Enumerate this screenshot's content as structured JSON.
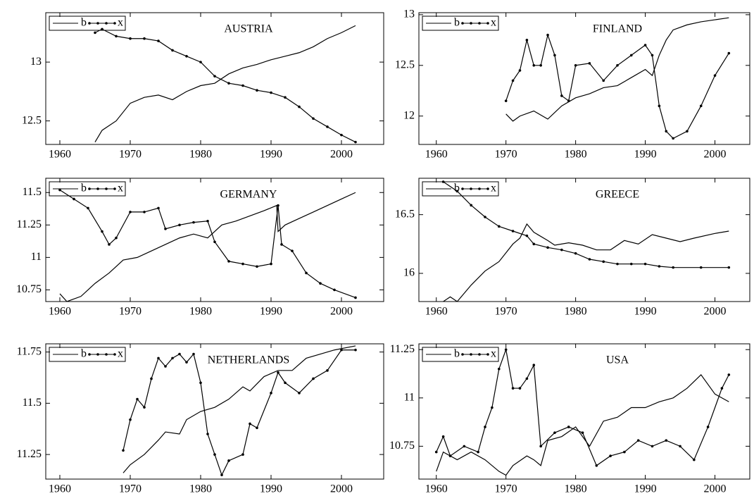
{
  "chart_data": [
    {
      "type": "line",
      "title": "AUSTRIA",
      "legend": "upper left",
      "xlim": [
        1958,
        2006
      ],
      "xticks": [
        1960,
        1970,
        1980,
        1990,
        2000
      ],
      "ylim": [
        12.3,
        13.42
      ],
      "yticks": [
        12.5,
        13
      ],
      "series": [
        {
          "name": "b",
          "color": "#000000",
          "marker": "none",
          "x": [
            1965,
            1966,
            1968,
            1970,
            1972,
            1974,
            1976,
            1978,
            1980,
            1982,
            1984,
            1986,
            1988,
            1990,
            1992,
            1994,
            1996,
            1998,
            2000,
            2002
          ],
          "values": [
            12.32,
            12.42,
            12.5,
            12.65,
            12.7,
            12.72,
            12.68,
            12.75,
            12.8,
            12.82,
            12.9,
            12.95,
            12.98,
            13.02,
            13.05,
            13.08,
            13.13,
            13.2,
            13.25,
            13.31
          ]
        },
        {
          "name": "x",
          "color": "#000000",
          "marker": "circle",
          "x": [
            1965,
            1966,
            1968,
            1970,
            1972,
            1974,
            1976,
            1978,
            1980,
            1982,
            1984,
            1986,
            1988,
            1990,
            1992,
            1994,
            1996,
            1998,
            2000,
            2002
          ],
          "values": [
            13.25,
            13.28,
            13.22,
            13.2,
            13.2,
            13.18,
            13.1,
            13.05,
            13.0,
            12.88,
            12.82,
            12.8,
            12.76,
            12.74,
            12.7,
            12.62,
            12.52,
            12.45,
            12.38,
            12.32
          ]
        }
      ]
    },
    {
      "type": "line",
      "title": "FINLAND",
      "legend": "upper left",
      "xlim": [
        1957.5,
        2005
      ],
      "xticks": [
        1960,
        1970,
        1980,
        1990,
        2000
      ],
      "ylim": [
        11.72,
        13.02
      ],
      "yticks": [
        12,
        12.5,
        13
      ],
      "series": [
        {
          "name": "b",
          "color": "#000000",
          "marker": "none",
          "x": [
            1970,
            1971,
            1972,
            1974,
            1976,
            1978,
            1980,
            1982,
            1984,
            1986,
            1988,
            1990,
            1991,
            1992,
            1993,
            1994,
            1996,
            1998,
            2000,
            2002
          ],
          "values": [
            12.02,
            11.95,
            12.0,
            12.05,
            11.97,
            12.1,
            12.18,
            12.22,
            12.28,
            12.3,
            12.38,
            12.46,
            12.4,
            12.6,
            12.75,
            12.85,
            12.9,
            12.93,
            12.95,
            12.97
          ]
        },
        {
          "name": "x",
          "color": "#000000",
          "marker": "circle",
          "x": [
            1970,
            1971,
            1972,
            1973,
            1974,
            1975,
            1976,
            1977,
            1978,
            1979,
            1980,
            1982,
            1984,
            1986,
            1988,
            1990,
            1991,
            1992,
            1993,
            1994,
            1996,
            1998,
            2000,
            2002
          ],
          "values": [
            12.15,
            12.35,
            12.45,
            12.75,
            12.5,
            12.5,
            12.8,
            12.6,
            12.2,
            12.15,
            12.5,
            12.52,
            12.35,
            12.5,
            12.6,
            12.7,
            12.6,
            12.1,
            11.85,
            11.78,
            11.85,
            12.1,
            12.4,
            12.62
          ]
        }
      ]
    },
    {
      "type": "line",
      "title": "GERMANY",
      "legend": "upper left",
      "xlim": [
        1958,
        2006
      ],
      "xticks": [
        1960,
        1970,
        1980,
        1990,
        2000
      ],
      "ylim": [
        10.66,
        11.61
      ],
      "yticks": [
        10.75,
        11,
        11.25,
        11.5
      ],
      "series": [
        {
          "name": "b",
          "color": "#000000",
          "marker": "none",
          "x": [
            1960,
            1961,
            1963,
            1965,
            1967,
            1969,
            1971,
            1973,
            1975,
            1977,
            1979,
            1981,
            1983,
            1985,
            1987,
            1989,
            1990.8,
            1991,
            1992,
            1994,
            1996,
            1998,
            2000,
            2002
          ],
          "values": [
            10.72,
            10.66,
            10.7,
            10.8,
            10.88,
            10.98,
            11.0,
            11.05,
            11.1,
            11.15,
            11.18,
            11.15,
            11.25,
            11.28,
            11.32,
            11.36,
            11.4,
            11.2,
            11.25,
            11.3,
            11.35,
            11.4,
            11.45,
            11.5
          ]
        },
        {
          "name": "x",
          "color": "#000000",
          "marker": "circle",
          "x": [
            1960,
            1962,
            1964,
            1966,
            1967,
            1968,
            1970,
            1972,
            1974,
            1975,
            1977,
            1979,
            1981,
            1982,
            1984,
            1986,
            1988,
            1990,
            1991,
            1991.5,
            1993,
            1995,
            1997,
            1999,
            2002
          ],
          "values": [
            11.52,
            11.45,
            11.38,
            11.2,
            11.1,
            11.15,
            11.35,
            11.35,
            11.38,
            11.22,
            11.25,
            11.27,
            11.28,
            11.12,
            10.97,
            10.95,
            10.93,
            10.95,
            11.4,
            11.1,
            11.05,
            10.88,
            10.8,
            10.75,
            10.69
          ]
        }
      ]
    },
    {
      "type": "line",
      "title": "GREECE",
      "legend": "upper left",
      "xlim": [
        1957.5,
        2005
      ],
      "xticks": [
        1960,
        1970,
        1980,
        1990,
        2000
      ],
      "ylim": [
        15.76,
        16.81
      ],
      "yticks": [
        16,
        16.5
      ],
      "series": [
        {
          "name": "b",
          "color": "#000000",
          "marker": "none",
          "x": [
            1961,
            1962,
            1963,
            1965,
            1967,
            1969,
            1971,
            1972,
            1973,
            1974,
            1976,
            1977,
            1979,
            1981,
            1983,
            1985,
            1987,
            1989,
            1991,
            1993,
            1995,
            1997,
            2000,
            2002
          ],
          "values": [
            15.76,
            15.8,
            15.76,
            15.9,
            16.02,
            16.1,
            16.25,
            16.3,
            16.42,
            16.35,
            16.28,
            16.24,
            16.26,
            16.24,
            16.2,
            16.2,
            16.28,
            16.25,
            16.33,
            16.3,
            16.27,
            16.3,
            16.34,
            16.36
          ]
        },
        {
          "name": "x",
          "color": "#000000",
          "marker": "circle",
          "x": [
            1961,
            1963,
            1965,
            1967,
            1969,
            1971,
            1973,
            1974,
            1976,
            1978,
            1980,
            1982,
            1984,
            1986,
            1988,
            1990,
            1992,
            1994,
            1998,
            2002
          ],
          "values": [
            16.78,
            16.7,
            16.58,
            16.48,
            16.4,
            16.36,
            16.32,
            16.25,
            16.22,
            16.2,
            16.17,
            16.12,
            16.1,
            16.08,
            16.08,
            16.08,
            16.06,
            16.05,
            16.05,
            16.05
          ]
        }
      ]
    },
    {
      "type": "line",
      "title": "NETHERLANDS",
      "legend": "upper left",
      "xlim": [
        1958,
        2006
      ],
      "xticks": [
        1960,
        1970,
        1980,
        1990,
        2000
      ],
      "ylim": [
        11.13,
        11.79
      ],
      "yticks": [
        11.25,
        11.5,
        11.75
      ],
      "series": [
        {
          "name": "b",
          "color": "#000000",
          "marker": "none",
          "x": [
            1969,
            1970,
            1972,
            1974,
            1975,
            1977,
            1978,
            1980,
            1982,
            1984,
            1986,
            1987,
            1989,
            1991,
            1993,
            1995,
            1997,
            1999,
            2002
          ],
          "values": [
            11.16,
            11.2,
            11.25,
            11.32,
            11.36,
            11.35,
            11.42,
            11.46,
            11.48,
            11.52,
            11.58,
            11.56,
            11.63,
            11.66,
            11.66,
            11.72,
            11.74,
            11.76,
            11.78
          ]
        },
        {
          "name": "x",
          "color": "#000000",
          "marker": "circle",
          "x": [
            1969,
            1970,
            1971,
            1972,
            1973,
            1974,
            1975,
            1976,
            1977,
            1978,
            1979,
            1980,
            1981,
            1982,
            1983,
            1984,
            1986,
            1987,
            1988,
            1990,
            1991,
            1992,
            1994,
            1996,
            1998,
            2000,
            2002
          ],
          "values": [
            11.27,
            11.42,
            11.52,
            11.48,
            11.62,
            11.72,
            11.68,
            11.72,
            11.74,
            11.7,
            11.74,
            11.6,
            11.35,
            11.25,
            11.15,
            11.22,
            11.25,
            11.4,
            11.38,
            11.55,
            11.65,
            11.6,
            11.55,
            11.62,
            11.66,
            11.76,
            11.76
          ]
        }
      ]
    },
    {
      "type": "line",
      "title": "USA",
      "legend": "upper left",
      "xlim": [
        1957.5,
        2005
      ],
      "xticks": [
        1960,
        1970,
        1980,
        1990,
        2000
      ],
      "ylim": [
        10.58,
        11.28
      ],
      "yticks": [
        10.75,
        11,
        11.25
      ],
      "series": [
        {
          "name": "b",
          "color": "#000000",
          "marker": "none",
          "x": [
            1960,
            1961,
            1963,
            1965,
            1967,
            1969,
            1970,
            1971,
            1973,
            1974,
            1975,
            1976,
            1978,
            1980,
            1982,
            1984,
            1986,
            1988,
            1990,
            1992,
            1994,
            1996,
            1998,
            2000,
            2002
          ],
          "values": [
            10.62,
            10.72,
            10.68,
            10.72,
            10.68,
            10.62,
            10.6,
            10.65,
            10.7,
            10.68,
            10.65,
            10.78,
            10.8,
            10.85,
            10.75,
            10.88,
            10.9,
            10.95,
            10.95,
            10.98,
            11.0,
            11.05,
            11.12,
            11.02,
            10.98
          ]
        },
        {
          "name": "x",
          "color": "#000000",
          "marker": "circle",
          "x": [
            1960,
            1961,
            1962,
            1964,
            1966,
            1967,
            1968,
            1969,
            1970,
            1971,
            1972,
            1973,
            1974,
            1975,
            1977,
            1979,
            1981,
            1983,
            1985,
            1987,
            1989,
            1991,
            1993,
            1995,
            1997,
            1999,
            2001,
            2002
          ],
          "values": [
            10.72,
            10.8,
            10.7,
            10.75,
            10.72,
            10.85,
            10.95,
            11.15,
            11.25,
            11.05,
            11.05,
            11.1,
            11.17,
            10.75,
            10.82,
            10.85,
            10.82,
            10.65,
            10.7,
            10.72,
            10.78,
            10.75,
            10.78,
            10.75,
            10.68,
            10.85,
            11.05,
            11.12
          ]
        }
      ]
    }
  ]
}
